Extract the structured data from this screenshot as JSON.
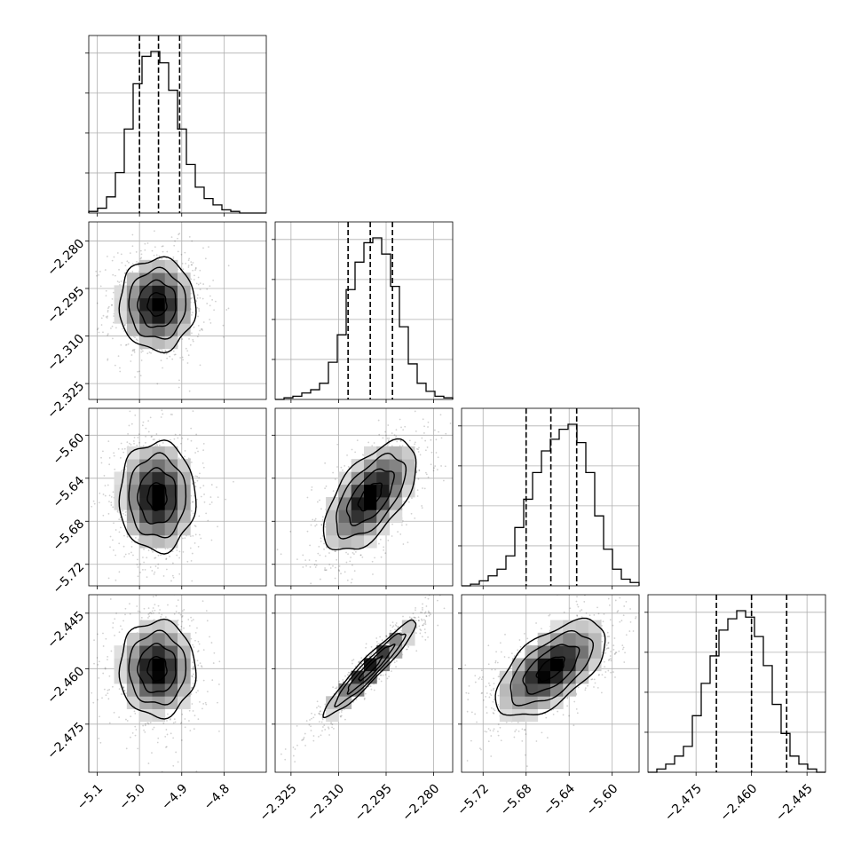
{
  "chart_data": {
    "type": "corner",
    "title": "",
    "grid": true,
    "parameters": [
      {
        "index": 0,
        "range": [
          -5.12,
          -4.7
        ],
        "ticks": [
          -5.1,
          -5.0,
          -4.9,
          -4.8
        ],
        "tick_labels": [
          "−5.1",
          "−5.0",
          "−4.9",
          "−4.8"
        ],
        "quantiles": [
          -5.0,
          -4.955,
          -4.905
        ]
      },
      {
        "index": 1,
        "range": [
          -2.33,
          -2.274
        ],
        "ticks": [
          -2.325,
          -2.31,
          -2.295,
          -2.28
        ],
        "tick_labels": [
          "−2.325",
          "−2.310",
          "−2.295",
          "−2.280"
        ],
        "quantiles": [
          -2.307,
          -2.3,
          -2.293
        ]
      },
      {
        "index": 2,
        "range": [
          -5.74,
          -5.575
        ],
        "ticks": [
          -5.72,
          -5.68,
          -5.64,
          -5.6
        ],
        "tick_labels": [
          "−5.72",
          "−5.68",
          "−5.64",
          "−5.60"
        ],
        "quantiles": [
          -5.68,
          -5.657,
          -5.633
        ]
      },
      {
        "index": 3,
        "range": [
          -2.488,
          -2.44
        ],
        "ticks": [
          -2.475,
          -2.46,
          -2.445
        ],
        "tick_labels": [
          "−2.475",
          "−2.460",
          "−2.445"
        ],
        "quantiles": [
          -2.4695,
          -2.46,
          -2.4505
        ]
      }
    ],
    "histograms": [
      {
        "param": 0,
        "counts": [
          1,
          3,
          10,
          25,
          52,
          80,
          97,
          100,
          93,
          76,
          52,
          30,
          16,
          9,
          5,
          2,
          1,
          0,
          0,
          0
        ]
      },
      {
        "param": 1,
        "counts": [
          0,
          1,
          2,
          4,
          6,
          10,
          23,
          40,
          68,
          85,
          97,
          100,
          90,
          70,
          45,
          22,
          10,
          5,
          2,
          1
        ]
      },
      {
        "param": 2,
        "counts": [
          0,
          1,
          3,
          6,
          10,
          18,
          35,
          52,
          68,
          81,
          88,
          94,
          97,
          86,
          68,
          42,
          22,
          10,
          4,
          2
        ]
      },
      {
        "param": 3,
        "counts": [
          0,
          2,
          5,
          10,
          16,
          35,
          55,
          72,
          88,
          95,
          100,
          96,
          84,
          66,
          42,
          24,
          10,
          5,
          2,
          0
        ]
      }
    ],
    "pairs": [
      {
        "x": 1,
        "y": 0,
        "x_center": -4.958,
        "y_center": -2.3,
        "x_sd": 0.045,
        "y_sd": 0.0073,
        "corr": 0.0
      },
      {
        "x": 2,
        "y": 0,
        "x_center": -4.958,
        "y_center": -5.657,
        "x_sd": 0.045,
        "y_sd": 0.0255,
        "corr": 0.0
      },
      {
        "x": 2,
        "y": 1,
        "x_center": -2.3,
        "y_center": -5.657,
        "x_sd": 0.0073,
        "y_sd": 0.0255,
        "corr": 0.6
      },
      {
        "x": 3,
        "y": 0,
        "x_center": -4.958,
        "y_center": -2.46,
        "x_sd": 0.045,
        "y_sd": 0.0065,
        "corr": 0.0
      },
      {
        "x": 3,
        "y": 1,
        "x_center": -2.3,
        "y_center": -2.46,
        "x_sd": 0.0073,
        "y_sd": 0.0065,
        "corr": 0.95
      },
      {
        "x": 3,
        "y": 2,
        "x_center": -5.657,
        "y_center": -2.46,
        "x_sd": 0.0255,
        "y_sd": 0.0065,
        "corr": 0.6
      }
    ],
    "contour_levels_sigma": [
      0.5,
      1.0,
      1.5,
      2.0
    ]
  }
}
